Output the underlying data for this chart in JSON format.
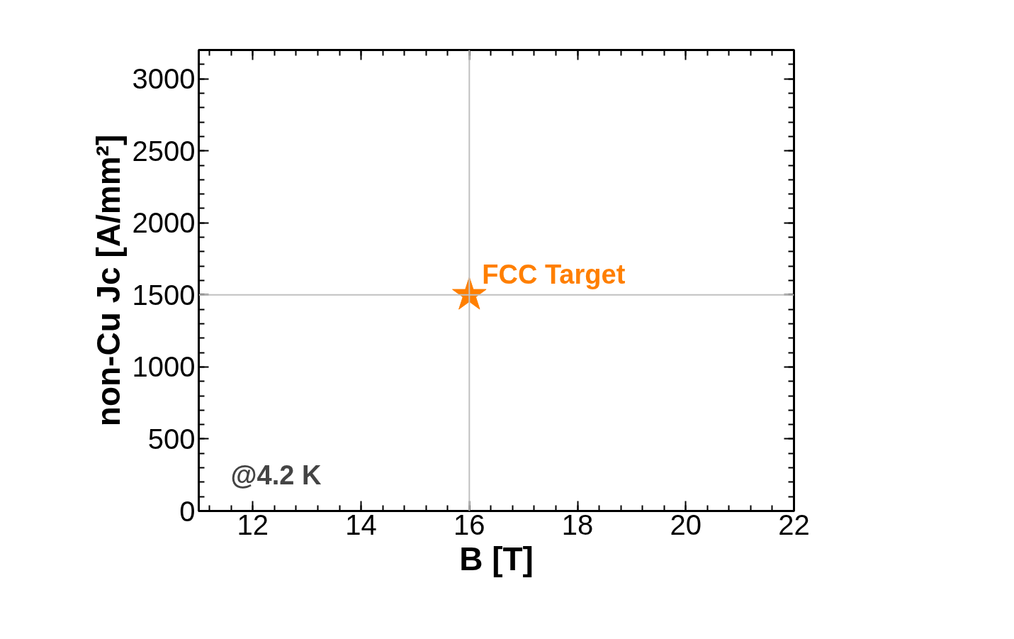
{
  "chart_data": {
    "type": "scatter",
    "xlabel": "B [T]",
    "ylabel": "non-Cu Jc [A/mm²]",
    "xlim": [
      11,
      22
    ],
    "xticks": [
      12,
      14,
      16,
      18,
      20,
      22
    ],
    "ylim": [
      0,
      3200
    ],
    "yticks": [
      0,
      500,
      1000,
      1500,
      2000,
      2500,
      3000
    ],
    "series": [
      {
        "name": "FCC Target",
        "color": "#ff7f00",
        "x": [
          16
        ],
        "values": [
          1500
        ]
      }
    ],
    "marker": "star",
    "grid": false,
    "ref_lines": [
      {
        "axis": "x",
        "value": 16,
        "color": "#c0c0c0"
      },
      {
        "axis": "y",
        "value": 1500,
        "color": "#c0c0c0"
      }
    ],
    "annotations": [
      "@4.2 K"
    ]
  }
}
